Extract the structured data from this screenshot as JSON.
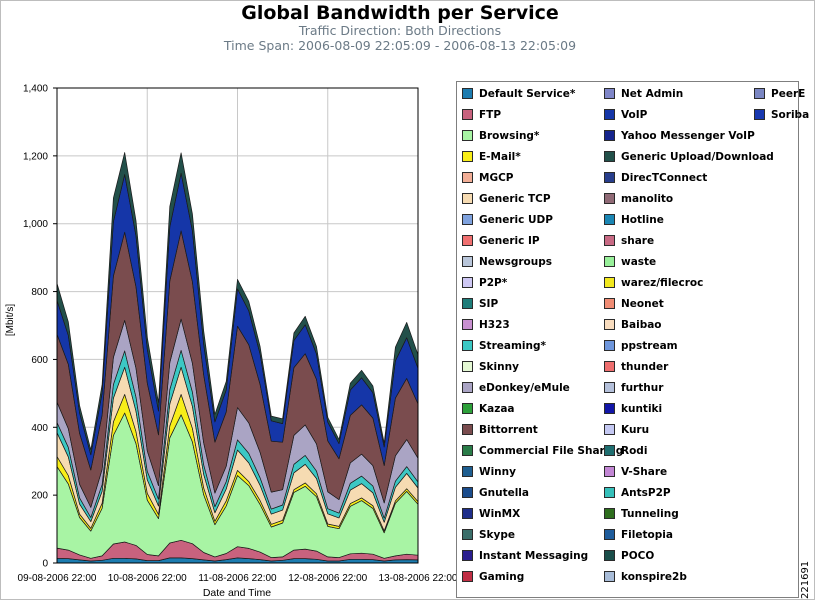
{
  "header": {
    "title": "Global Bandwidth per Service",
    "subtitle": "Traffic Direction: Both Directions",
    "timespan": "Time Span: 2006-08-09 22:05:09 - 2006-08-13 22:05:09"
  },
  "figure_id": "221691",
  "chart_data": {
    "type": "area",
    "stacked": true,
    "ylabel": "[Mbit/s]",
    "xlabel": "Date and Time",
    "ylim": [
      0,
      1400
    ],
    "yticks": [
      "0",
      "200",
      "400",
      "600",
      "800",
      "1,000",
      "1,200",
      "1,400"
    ],
    "xticks": [
      "09-08-2006 22:00",
      "10-08-2006 22:00",
      "11-08-2006 22:00",
      "12-08-2006 22:00",
      "13-08-2006 22:00"
    ],
    "xlim_hours": [
      0,
      96
    ],
    "grid": true,
    "legend_position": "right",
    "x_hours": [
      0,
      3,
      6,
      9,
      12,
      15,
      18,
      21,
      24,
      27,
      30,
      33,
      36,
      39,
      42,
      45,
      48,
      51,
      54,
      57,
      60,
      63,
      66,
      69,
      72,
      75,
      78,
      81,
      84,
      87,
      90,
      93,
      96
    ],
    "series": [
      {
        "name": "Default Service*",
        "color": "#1c7cb0",
        "values": [
          14,
          13,
          9,
          6,
          8,
          14,
          14,
          12,
          7,
          7,
          15,
          15,
          13,
          9,
          6,
          10,
          15,
          13,
          10,
          6,
          8,
          13,
          13,
          11,
          6,
          6,
          11,
          11,
          10,
          6,
          9,
          10,
          9
        ]
      },
      {
        "name": "FTP",
        "color": "#c8627e",
        "values": [
          30,
          25,
          15,
          8,
          13,
          42,
          48,
          40,
          18,
          14,
          44,
          52,
          44,
          22,
          12,
          18,
          33,
          30,
          22,
          10,
          10,
          25,
          28,
          24,
          12,
          10,
          16,
          18,
          16,
          8,
          12,
          16,
          14
        ]
      },
      {
        "name": "Browsing*",
        "color": "#a8f4a4",
        "values": [
          240,
          195,
          110,
          80,
          140,
          320,
          380,
          300,
          160,
          110,
          310,
          370,
          300,
          170,
          95,
          140,
          210,
          185,
          140,
          90,
          100,
          170,
          185,
          160,
          90,
          85,
          140,
          155,
          135,
          75,
          155,
          185,
          150
        ]
      },
      {
        "name": "E-Mail*",
        "color": "#f8ee18",
        "values": [
          30,
          25,
          10,
          8,
          15,
          40,
          55,
          35,
          20,
          12,
          35,
          60,
          40,
          20,
          10,
          15,
          15,
          12,
          12,
          8,
          8,
          8,
          10,
          9,
          7,
          7,
          8,
          8,
          8,
          6,
          7,
          8,
          8
        ]
      },
      {
        "name": "Generic TCP",
        "color": "#f6dbb2",
        "values": [
          70,
          55,
          30,
          20,
          35,
          70,
          80,
          60,
          40,
          25,
          65,
          80,
          65,
          40,
          25,
          35,
          60,
          55,
          45,
          30,
          30,
          50,
          55,
          45,
          30,
          25,
          40,
          42,
          38,
          25,
          40,
          45,
          40
        ]
      },
      {
        "name": "Streaming*",
        "color": "#3cc8c4",
        "values": [
          30,
          28,
          18,
          12,
          20,
          40,
          48,
          42,
          25,
          20,
          42,
          50,
          42,
          28,
          18,
          22,
          30,
          28,
          22,
          15,
          15,
          25,
          26,
          22,
          15,
          14,
          20,
          22,
          20,
          12,
          18,
          20,
          18
        ]
      },
      {
        "name": "eDonkey/eMule",
        "color": "#aaa4c4",
        "values": [
          60,
          55,
          40,
          30,
          45,
          80,
          90,
          85,
          60,
          40,
          80,
          92,
          85,
          65,
          40,
          45,
          95,
          90,
          75,
          50,
          45,
          85,
          90,
          80,
          50,
          40,
          60,
          65,
          60,
          45,
          75,
          80,
          70
        ]
      },
      {
        "name": "Bittorrent",
        "color": "#7a4c4e",
        "values": [
          200,
          190,
          150,
          110,
          160,
          240,
          260,
          240,
          200,
          150,
          240,
          260,
          240,
          200,
          150,
          160,
          240,
          230,
          200,
          150,
          140,
          200,
          210,
          190,
          150,
          120,
          140,
          145,
          140,
          110,
          170,
          180,
          160
        ]
      },
      {
        "name": "VoIP",
        "color": "#1536a8",
        "values": [
          100,
          85,
          60,
          45,
          65,
          160,
          170,
          150,
          100,
          70,
          160,
          170,
          150,
          90,
          60,
          65,
          110,
          100,
          90,
          60,
          55,
          80,
          85,
          75,
          55,
          45,
          75,
          80,
          75,
          55,
          110,
          120,
          105
        ]
      },
      {
        "name": "Generic Upload/Download",
        "color": "#22504a",
        "values": [
          50,
          40,
          22,
          15,
          25,
          70,
          65,
          45,
          35,
          25,
          60,
          60,
          50,
          40,
          22,
          25,
          28,
          28,
          22,
          14,
          14,
          22,
          25,
          22,
          14,
          12,
          20,
          22,
          20,
          12,
          40,
          45,
          40
        ]
      }
    ]
  },
  "legend": [
    [
      {
        "label": "Default Service*",
        "color": "#1c7cb0"
      },
      {
        "label": "FTP",
        "color": "#c8627e"
      },
      {
        "label": "Browsing*",
        "color": "#a8f4a4"
      },
      {
        "label": "E-Mail*",
        "color": "#f8ee18"
      },
      {
        "label": "MGCP",
        "color": "#f2ae96"
      },
      {
        "label": "Generic TCP",
        "color": "#f6dbb2"
      },
      {
        "label": "Generic UDP",
        "color": "#7fa2de"
      },
      {
        "label": "Generic IP",
        "color": "#f07070"
      },
      {
        "label": "Newsgroups",
        "color": "#b9c6da"
      },
      {
        "label": "P2P*",
        "color": "#cec8f4"
      },
      {
        "label": "SIP",
        "color": "#1e7d7a"
      },
      {
        "label": "H323",
        "color": "#c890d0"
      },
      {
        "label": "Streaming*",
        "color": "#3cc8c4"
      },
      {
        "label": "Skinny",
        "color": "#e4f8d4"
      },
      {
        "label": "eDonkey/eMule",
        "color": "#aaa4c4"
      },
      {
        "label": "Kazaa",
        "color": "#2da03a"
      },
      {
        "label": "Bittorrent",
        "color": "#7a4c4e"
      },
      {
        "label": "Commercial File Sharing",
        "color": "#2a7c48"
      },
      {
        "label": "Winny",
        "color": "#1e5e90"
      },
      {
        "label": "Gnutella",
        "color": "#1a4c8c"
      },
      {
        "label": "WinMX",
        "color": "#1e2e8a"
      },
      {
        "label": "Skype",
        "color": "#3a6e6a"
      },
      {
        "label": "Instant Messaging",
        "color": "#2a1e8e"
      },
      {
        "label": "Gaming",
        "color": "#c02e44"
      }
    ],
    [
      {
        "label": "Net Admin",
        "color": "#7f86c8"
      },
      {
        "label": "VoIP",
        "color": "#1536a8"
      },
      {
        "label": "Yahoo Messenger VoIP",
        "color": "#15248c"
      },
      {
        "label": "Generic Upload/Download",
        "color": "#22504a"
      },
      {
        "label": "DirecTConnect",
        "color": "#283e8c"
      },
      {
        "label": "manolito",
        "color": "#906a76"
      },
      {
        "label": "Hotline",
        "color": "#1a86b4"
      },
      {
        "label": "share",
        "color": "#c86a84"
      },
      {
        "label": "waste",
        "color": "#98f09a"
      },
      {
        "label": "warez/filecroc",
        "color": "#f2e81e"
      },
      {
        "label": "Neonet",
        "color": "#f08c74"
      },
      {
        "label": "Baibao",
        "color": "#f8dcbe"
      },
      {
        "label": "ppstream",
        "color": "#6e96dc"
      },
      {
        "label": "thunder",
        "color": "#ee6e6e"
      },
      {
        "label": "furthur",
        "color": "#b4c0da"
      },
      {
        "label": "kuntiki",
        "color": "#1216a8"
      },
      {
        "label": "Kuru",
        "color": "#c4c8f2"
      },
      {
        "label": "Rodi",
        "color": "#1e6e70"
      },
      {
        "label": "V-Share",
        "color": "#c286d4"
      },
      {
        "label": "AntsP2P",
        "color": "#36c0ba"
      },
      {
        "label": "Tunneling",
        "color": "#2e6e1e"
      },
      {
        "label": "Filetopia",
        "color": "#1e5c9c"
      },
      {
        "label": "POCO",
        "color": "#1a4e4a"
      },
      {
        "label": "konspire2b",
        "color": "#a8bcd8"
      }
    ],
    [
      {
        "label": "PeerE",
        "color": "#7a86c2"
      },
      {
        "label": "Soriba",
        "color": "#1838b0"
      }
    ]
  ]
}
